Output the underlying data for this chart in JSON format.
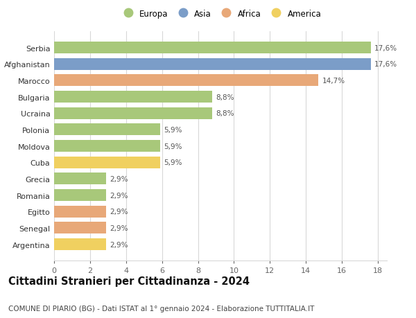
{
  "categories": [
    "Argentina",
    "Senegal",
    "Egitto",
    "Romania",
    "Grecia",
    "Cuba",
    "Moldova",
    "Polonia",
    "Ucraina",
    "Bulgaria",
    "Marocco",
    "Afghanistan",
    "Serbia"
  ],
  "values": [
    2.9,
    2.9,
    2.9,
    2.9,
    2.9,
    5.9,
    5.9,
    5.9,
    8.8,
    8.8,
    14.7,
    17.6,
    17.6
  ],
  "continents": [
    "America",
    "Africa",
    "Africa",
    "Europa",
    "Europa",
    "America",
    "Europa",
    "Europa",
    "Europa",
    "Europa",
    "Africa",
    "Asia",
    "Europa"
  ],
  "colors": {
    "Europa": "#a8c87a",
    "Asia": "#7b9dc8",
    "Africa": "#e8a878",
    "America": "#f0d060"
  },
  "bar_labels": [
    "2,9%",
    "2,9%",
    "2,9%",
    "2,9%",
    "2,9%",
    "5,9%",
    "5,9%",
    "5,9%",
    "8,8%",
    "8,8%",
    "14,7%",
    "17,6%",
    "17,6%"
  ],
  "xlim": [
    0,
    18.5
  ],
  "xticks": [
    0,
    2,
    4,
    6,
    8,
    10,
    12,
    14,
    16,
    18
  ],
  "title": "Cittadini Stranieri per Cittadinanza - 2024",
  "subtitle": "COMUNE DI PIARIO (BG) - Dati ISTAT al 1° gennaio 2024 - Elaborazione TUTTITALIA.IT",
  "legend_order": [
    "Europa",
    "Asia",
    "Africa",
    "America"
  ],
  "background_color": "#ffffff",
  "grid_color": "#d8d8d8",
  "bar_height": 0.72,
  "label_fontsize": 7.5,
  "title_fontsize": 10.5,
  "subtitle_fontsize": 7.5,
  "ytick_fontsize": 8,
  "xtick_fontsize": 8
}
